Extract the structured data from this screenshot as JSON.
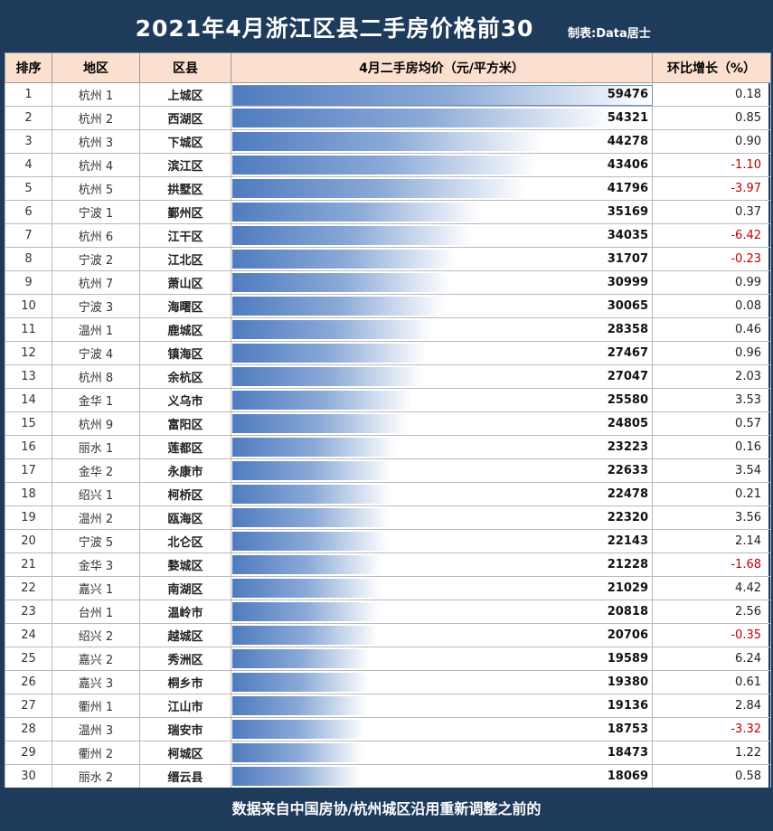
{
  "title": "2021年4月浙江区县二手房价格前30",
  "credit": "制表:Data居士",
  "footer": "数据来自中国房协/杭州城区沿用重新调整之前的",
  "headers": {
    "rank": "排序",
    "city": "地区",
    "county": "区县",
    "price": "4月二手房均价（元/平方米）",
    "change": "环比增长（%）"
  },
  "chart_data": {
    "type": "table",
    "price_max": 59476,
    "rows": [
      {
        "rank": "1",
        "city": "杭州 1",
        "county": "上城区",
        "price": 59476,
        "price_text": "59476",
        "change": 0.18,
        "change_text": "0.18"
      },
      {
        "rank": "2",
        "city": "杭州 2",
        "county": "西湖区",
        "price": 54321,
        "price_text": "54321",
        "change": 0.85,
        "change_text": "0.85"
      },
      {
        "rank": "3",
        "city": "杭州 3",
        "county": "下城区",
        "price": 44278,
        "price_text": "44278",
        "change": 0.9,
        "change_text": "0.90"
      },
      {
        "rank": "4",
        "city": "杭州 4",
        "county": "滨江区",
        "price": 43406,
        "price_text": "43406",
        "change": -1.1,
        "change_text": "-1.10"
      },
      {
        "rank": "5",
        "city": "杭州 5",
        "county": "拱墅区",
        "price": 41796,
        "price_text": "41796",
        "change": -3.97,
        "change_text": "-3.97"
      },
      {
        "rank": "6",
        "city": "宁波 1",
        "county": "鄞州区",
        "price": 35169,
        "price_text": "35169",
        "change": 0.37,
        "change_text": "0.37"
      },
      {
        "rank": "7",
        "city": "杭州 6",
        "county": "江干区",
        "price": 34035,
        "price_text": "34035",
        "change": -6.42,
        "change_text": "-6.42"
      },
      {
        "rank": "8",
        "city": "宁波 2",
        "county": "江北区",
        "price": 31707,
        "price_text": "31707",
        "change": -0.23,
        "change_text": "-0.23"
      },
      {
        "rank": "9",
        "city": "杭州 7",
        "county": "萧山区",
        "price": 30999,
        "price_text": "30999",
        "change": 0.99,
        "change_text": "0.99"
      },
      {
        "rank": "10",
        "city": "宁波 3",
        "county": "海曙区",
        "price": 30065,
        "price_text": "30065",
        "change": 0.08,
        "change_text": "0.08"
      },
      {
        "rank": "11",
        "city": "温州 1",
        "county": "鹿城区",
        "price": 28358,
        "price_text": "28358",
        "change": 0.46,
        "change_text": "0.46"
      },
      {
        "rank": "12",
        "city": "宁波 4",
        "county": "镇海区",
        "price": 27467,
        "price_text": "27467",
        "change": 0.96,
        "change_text": "0.96"
      },
      {
        "rank": "13",
        "city": "杭州 8",
        "county": "余杭区",
        "price": 27047,
        "price_text": "27047",
        "change": 2.03,
        "change_text": "2.03"
      },
      {
        "rank": "14",
        "city": "金华 1",
        "county": "义乌市",
        "price": 25580,
        "price_text": "25580",
        "change": 3.53,
        "change_text": "3.53"
      },
      {
        "rank": "15",
        "city": "杭州 9",
        "county": "富阳区",
        "price": 24805,
        "price_text": "24805",
        "change": 0.57,
        "change_text": "0.57"
      },
      {
        "rank": "16",
        "city": "丽水 1",
        "county": "莲都区",
        "price": 23223,
        "price_text": "23223",
        "change": 0.16,
        "change_text": "0.16"
      },
      {
        "rank": "17",
        "city": "金华 2",
        "county": "永康市",
        "price": 22633,
        "price_text": "22633",
        "change": 3.54,
        "change_text": "3.54"
      },
      {
        "rank": "18",
        "city": "绍兴 1",
        "county": "柯桥区",
        "price": 22478,
        "price_text": "22478",
        "change": 0.21,
        "change_text": "0.21"
      },
      {
        "rank": "19",
        "city": "温州 2",
        "county": "瓯海区",
        "price": 22320,
        "price_text": "22320",
        "change": 3.56,
        "change_text": "3.56"
      },
      {
        "rank": "20",
        "city": "宁波 5",
        "county": "北仑区",
        "price": 22143,
        "price_text": "22143",
        "change": 2.14,
        "change_text": "2.14"
      },
      {
        "rank": "21",
        "city": "金华 3",
        "county": "婺城区",
        "price": 21228,
        "price_text": "21228",
        "change": -1.68,
        "change_text": "-1.68"
      },
      {
        "rank": "22",
        "city": "嘉兴 1",
        "county": "南湖区",
        "price": 21029,
        "price_text": "21029",
        "change": 4.42,
        "change_text": "4.42"
      },
      {
        "rank": "23",
        "city": "台州 1",
        "county": "温岭市",
        "price": 20818,
        "price_text": "20818",
        "change": 2.56,
        "change_text": "2.56"
      },
      {
        "rank": "24",
        "city": "绍兴 2",
        "county": "越城区",
        "price": 20706,
        "price_text": "20706",
        "change": -0.35,
        "change_text": "-0.35"
      },
      {
        "rank": "25",
        "city": "嘉兴 2",
        "county": "秀洲区",
        "price": 19589,
        "price_text": "19589",
        "change": 6.24,
        "change_text": "6.24"
      },
      {
        "rank": "26",
        "city": "嘉兴 3",
        "county": "桐乡市",
        "price": 19380,
        "price_text": "19380",
        "change": 0.61,
        "change_text": "0.61"
      },
      {
        "rank": "27",
        "city": "衢州 1",
        "county": "江山市",
        "price": 19136,
        "price_text": "19136",
        "change": 2.84,
        "change_text": "2.84"
      },
      {
        "rank": "28",
        "city": "温州 3",
        "county": "瑞安市",
        "price": 18753,
        "price_text": "18753",
        "change": -3.32,
        "change_text": "-3.32"
      },
      {
        "rank": "29",
        "city": "衢州 2",
        "county": "柯城区",
        "price": 18473,
        "price_text": "18473",
        "change": 1.22,
        "change_text": "1.22"
      },
      {
        "rank": "30",
        "city": "丽水 2",
        "county": "缙云县",
        "price": 18069,
        "price_text": "18069",
        "change": 0.58,
        "change_text": "0.58"
      }
    ]
  },
  "colors": {
    "header_bg": "#1f3b5c",
    "column_header_bg": "#fbe0d0",
    "bar_start": "#4f7bbf",
    "bar_end": "#ffffff",
    "negative_text": "#c00000"
  }
}
